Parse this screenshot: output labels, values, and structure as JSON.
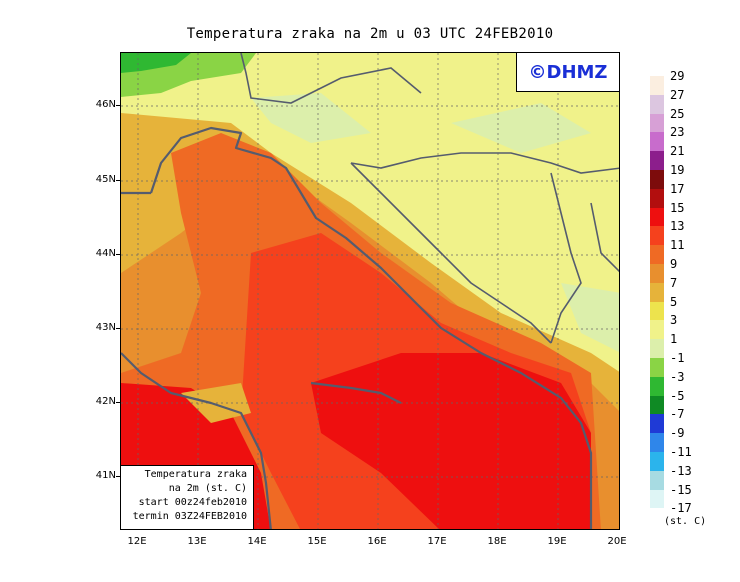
{
  "title": "Temperatura zraka na 2m u 03 UTC 24FEB2010",
  "logo": "©DHMZ",
  "lat_labels": [
    "46N",
    "45N",
    "44N",
    "43N",
    "42N",
    "41N"
  ],
  "lon_labels": [
    "12E",
    "13E",
    "14E",
    "15E",
    "16E",
    "17E",
    "18E",
    "19E",
    "20E"
  ],
  "info": {
    "line1": "Temperatura zraka",
    "line2": "na 2m (st. C)",
    "line3": "start 00z24feb2010",
    "line4": "termin 03Z24FEB2010"
  },
  "legend": {
    "labels": [
      "29",
      "27",
      "25",
      "23",
      "21",
      "19",
      "17",
      "15",
      "13",
      "11",
      "9",
      "7",
      "5",
      "3",
      "1",
      "-1",
      "-3",
      "-5",
      "-7",
      "-9",
      "-11",
      "-13",
      "-15",
      "-17"
    ],
    "colors": [
      "#fbeee0",
      "#dcc6e0",
      "#d7a0d6",
      "#c86ccc",
      "#8c1e8c",
      "#7d0c0c",
      "#b20e0e",
      "#ee0f0f",
      "#f5411d",
      "#ef6a24",
      "#e88f2e",
      "#e6b33a",
      "#ede34d",
      "#f0f28a",
      "#dcefab",
      "#8ad445",
      "#2fb832",
      "#0f8a24",
      "#1f3ad6",
      "#2f86ea",
      "#2bb4ec",
      "#a7dbe2",
      "#def5f5"
    ],
    "unit": "(st. C)"
  }
}
